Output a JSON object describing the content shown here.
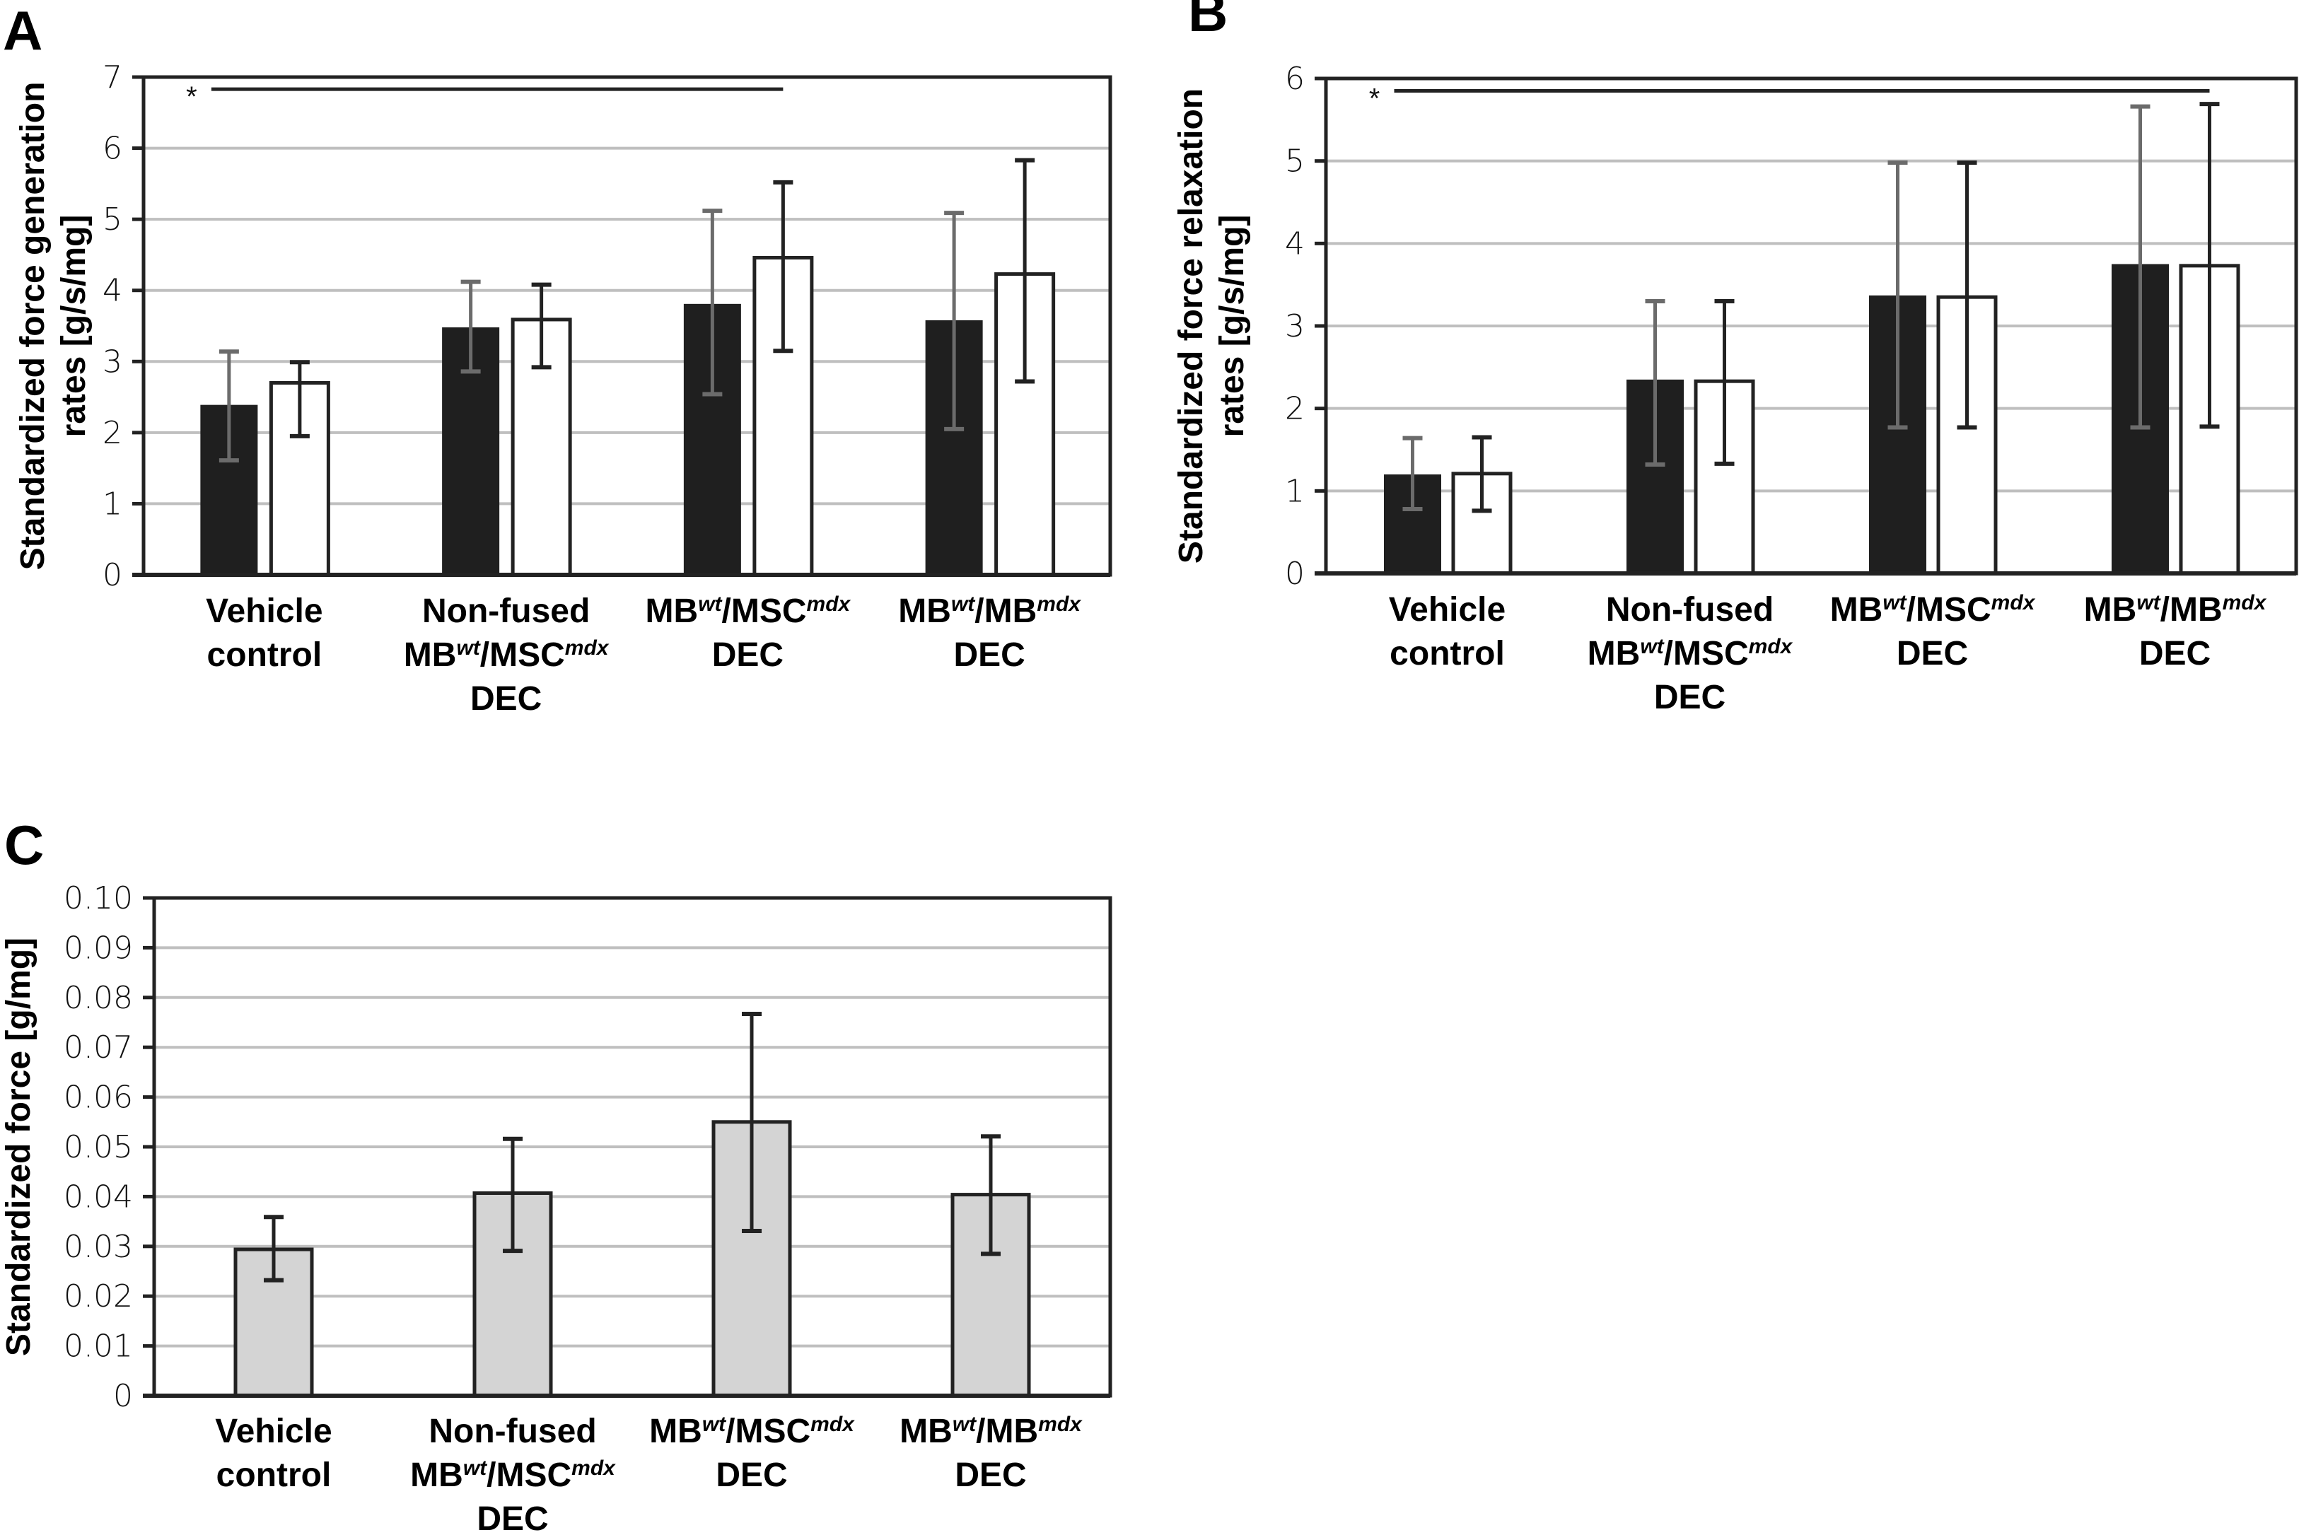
{
  "figure": {
    "colors": {
      "black_bar": "#1f1f1f",
      "white_bar_fill": "#ffffff",
      "white_bar_stroke": "#222222",
      "gray_bar": "#d4d4d4",
      "black_bar_error": "#6b6b6b",
      "error": "#222222",
      "grid": "#bfbfbf",
      "axis": "#222222"
    }
  },
  "chart_data": [
    {
      "panel": "A",
      "type": "bar",
      "title": "",
      "xlabel": "",
      "ylabel_lines": [
        "Standardized force generation",
        "rates [g/s/mg]"
      ],
      "ylim": [
        0,
        7
      ],
      "yticks": [
        "0",
        "1",
        "2",
        "3",
        "4",
        "5",
        "6",
        "7"
      ],
      "grid": true,
      "legend": "none",
      "categories": [
        {
          "lines": [
            [
              {
                "t": "Vehicle"
              }
            ],
            [
              {
                "t": "control"
              }
            ]
          ]
        },
        {
          "lines": [
            [
              {
                "t": "Non-fused"
              }
            ],
            [
              {
                "t": "MB"
              },
              {
                "t": "wt",
                "sup": true
              },
              {
                "t": "/MSC"
              },
              {
                "t": "mdx",
                "sup": true
              }
            ],
            [
              {
                "t": "DEC"
              }
            ]
          ]
        },
        {
          "lines": [
            [
              {
                "t": "MB"
              },
              {
                "t": "wt",
                "sup": true
              },
              {
                "t": "/MSC"
              },
              {
                "t": "mdx",
                "sup": true
              }
            ],
            [
              {
                "t": "DEC"
              }
            ]
          ]
        },
        {
          "lines": [
            [
              {
                "t": "MB"
              },
              {
                "t": "wt",
                "sup": true
              },
              {
                "t": "/MB"
              },
              {
                "t": "mdx",
                "sup": true
              }
            ],
            [
              {
                "t": "DEC"
              }
            ]
          ]
        }
      ],
      "series": [
        {
          "name": "black",
          "style": "black",
          "values": [
            2.39,
            3.48,
            3.81,
            3.58
          ],
          "err_high": [
            3.14,
            4.12,
            5.12,
            5.09
          ],
          "err_low": [
            1.61,
            2.86,
            2.54,
            2.05
          ]
        },
        {
          "name": "white",
          "style": "white",
          "values": [
            2.7,
            3.59,
            4.46,
            4.23
          ],
          "err_high": [
            2.99,
            4.08,
            5.52,
            5.83
          ],
          "err_low": [
            1.95,
            2.92,
            3.15,
            2.72
          ]
        }
      ],
      "significance": {
        "label": "*",
        "y": 6.83,
        "from_category": 0,
        "to_category": 2,
        "to_series": 1
      }
    },
    {
      "panel": "B",
      "type": "bar",
      "title": "",
      "xlabel": "",
      "ylabel_lines": [
        "Standardized force relaxation",
        "rates [g/s/mg]"
      ],
      "ylim": [
        0,
        6
      ],
      "yticks": [
        "0",
        "1",
        "2",
        "3",
        "4",
        "5",
        "6"
      ],
      "grid": true,
      "legend": "none",
      "categories": [
        {
          "lines": [
            [
              {
                "t": "Vehicle"
              }
            ],
            [
              {
                "t": "control"
              }
            ]
          ]
        },
        {
          "lines": [
            [
              {
                "t": "Non-fused"
              }
            ],
            [
              {
                "t": "MB"
              },
              {
                "t": "wt",
                "sup": true
              },
              {
                "t": "/MSC"
              },
              {
                "t": "mdx",
                "sup": true
              }
            ],
            [
              {
                "t": "DEC"
              }
            ]
          ]
        },
        {
          "lines": [
            [
              {
                "t": "MB"
              },
              {
                "t": "wt",
                "sup": true
              },
              {
                "t": "/MSC"
              },
              {
                "t": "mdx",
                "sup": true
              }
            ],
            [
              {
                "t": "DEC"
              }
            ]
          ]
        },
        {
          "lines": [
            [
              {
                "t": "MB"
              },
              {
                "t": "wt",
                "sup": true
              },
              {
                "t": "/MB"
              },
              {
                "t": "mdx",
                "sup": true
              }
            ],
            [
              {
                "t": "DEC"
              }
            ]
          ]
        }
      ],
      "series": [
        {
          "name": "black",
          "style": "black",
          "values": [
            1.2,
            2.35,
            3.37,
            3.75
          ],
          "err_high": [
            1.64,
            3.3,
            4.98,
            5.66
          ],
          "err_low": [
            0.78,
            1.32,
            1.77,
            1.77
          ]
        },
        {
          "name": "white",
          "style": "white",
          "values": [
            1.21,
            2.33,
            3.35,
            3.73
          ],
          "err_high": [
            1.65,
            3.3,
            4.98,
            5.69
          ],
          "err_low": [
            0.76,
            1.33,
            1.77,
            1.78
          ]
        }
      ],
      "significance": {
        "label": "*",
        "y": 5.85,
        "from_category": 0,
        "to_category": 3,
        "to_series": 1
      }
    },
    {
      "panel": "C",
      "type": "bar",
      "title": "",
      "xlabel": "",
      "ylabel_lines": [
        "Standardized force [g/mg]"
      ],
      "ylim": [
        0,
        0.1
      ],
      "yticks": [
        "0",
        "0.01",
        "0.02",
        "0.03",
        "0.04",
        "0.05",
        "0.06",
        "0.07",
        "0.08",
        "0.09",
        "0.10"
      ],
      "grid": true,
      "legend": "none",
      "categories": [
        {
          "lines": [
            [
              {
                "t": "Vehicle"
              }
            ],
            [
              {
                "t": "control"
              }
            ]
          ]
        },
        {
          "lines": [
            [
              {
                "t": "Non-fused"
              }
            ],
            [
              {
                "t": "MB"
              },
              {
                "t": "wt",
                "sup": true
              },
              {
                "t": "/MSC"
              },
              {
                "t": "mdx",
                "sup": true
              }
            ],
            [
              {
                "t": "DEC"
              }
            ]
          ]
        },
        {
          "lines": [
            [
              {
                "t": "MB"
              },
              {
                "t": "wt",
                "sup": true
              },
              {
                "t": "/MSC"
              },
              {
                "t": "mdx",
                "sup": true
              }
            ],
            [
              {
                "t": "DEC"
              }
            ]
          ]
        },
        {
          "lines": [
            [
              {
                "t": "MB"
              },
              {
                "t": "wt",
                "sup": true
              },
              {
                "t": "/MB"
              },
              {
                "t": "mdx",
                "sup": true
              }
            ],
            [
              {
                "t": "DEC"
              }
            ]
          ]
        }
      ],
      "series": [
        {
          "name": "gray",
          "style": "gray",
          "values": [
            0.0294,
            0.0407,
            0.055,
            0.0404
          ],
          "err_high": [
            0.0359,
            0.0516,
            0.0767,
            0.0521
          ],
          "err_low": [
            0.0232,
            0.0291,
            0.0331,
            0.0285
          ]
        }
      ]
    }
  ]
}
